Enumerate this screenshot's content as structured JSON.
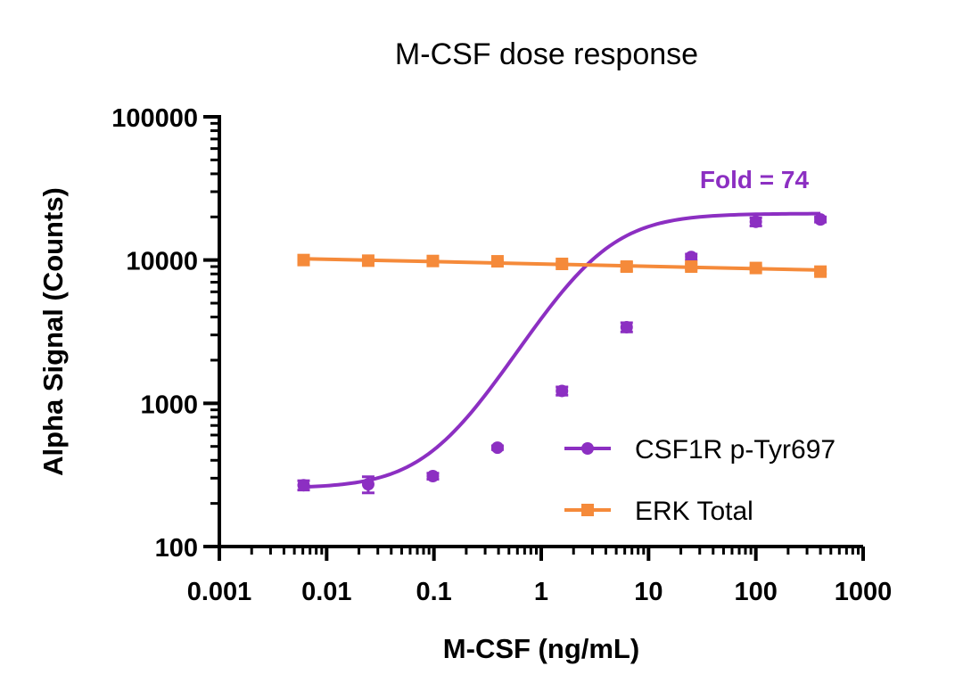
{
  "chart_data": {
    "type": "scatter",
    "title": "M-CSF dose response",
    "xlabel": "M-CSF (ng/mL)",
    "ylabel": "Alpha Signal (Counts)",
    "xscale": "log",
    "yscale": "log",
    "xlim": [
      0.001,
      1000
    ],
    "ylim": [
      100,
      100000
    ],
    "xticks": [
      "0.001",
      "0.01",
      "0.1",
      "1",
      "10",
      "100",
      "1000"
    ],
    "yticks": [
      "100",
      "1000",
      "10000",
      "100000"
    ],
    "grid": false,
    "legend_position": "bottom-right",
    "annotation": {
      "text": "Fold = 74",
      "color": "#8c2fc2"
    },
    "series": [
      {
        "name": "CSF1R p-Tyr697",
        "color": "#8c2fc2",
        "marker": "circle",
        "fit": "sigmoidal",
        "x": [
          0.0061,
          0.0244,
          0.0977,
          0.391,
          1.56,
          6.25,
          25,
          100,
          400
        ],
        "y": [
          268,
          272,
          310,
          490,
          1220,
          3400,
          10500,
          18500,
          19200
        ],
        "error": [
          20,
          35,
          15,
          15,
          80,
          250,
          500,
          1200,
          800
        ]
      },
      {
        "name": "ERK Total",
        "color": "#f58a3a",
        "marker": "square",
        "fit": "linear",
        "x": [
          0.0061,
          0.0244,
          0.0977,
          0.391,
          1.56,
          6.25,
          25,
          100,
          400
        ],
        "y": [
          10000,
          9900,
          9850,
          9800,
          9400,
          9000,
          9000,
          8800,
          8300
        ],
        "error": [
          150,
          150,
          150,
          150,
          200,
          600,
          400,
          200,
          300
        ]
      }
    ]
  }
}
